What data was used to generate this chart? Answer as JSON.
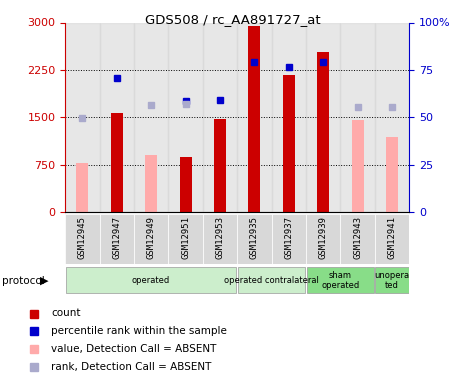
{
  "title": "GDS508 / rc_AA891727_at",
  "samples": [
    "GSM12945",
    "GSM12947",
    "GSM12949",
    "GSM12951",
    "GSM12953",
    "GSM12935",
    "GSM12937",
    "GSM12939",
    "GSM12943",
    "GSM12941"
  ],
  "count_values": [
    null,
    1570,
    null,
    870,
    1470,
    2940,
    2170,
    2540,
    null,
    null
  ],
  "count_absent": [
    780,
    null,
    900,
    null,
    null,
    null,
    null,
    null,
    1450,
    1180
  ],
  "rank_values_left": [
    null,
    2120,
    null,
    1750,
    1780,
    2380,
    2290,
    2370,
    null,
    null
  ],
  "rank_absent_left": [
    1480,
    null,
    1690,
    1710,
    null,
    null,
    null,
    null,
    1660,
    1660
  ],
  "protocols": [
    {
      "label": "operated",
      "start": 0,
      "end": 5,
      "color": "#cceecc"
    },
    {
      "label": "operated contralateral",
      "start": 5,
      "end": 7,
      "color": "#cceecc"
    },
    {
      "label": "sham\noperated",
      "start": 7,
      "end": 9,
      "color": "#88dd88"
    },
    {
      "label": "unopera\nted",
      "start": 9,
      "end": 10,
      "color": "#88dd88"
    }
  ],
  "left_ylim": [
    0,
    3000
  ],
  "right_ylim": [
    0,
    100
  ],
  "left_yticks": [
    0,
    750,
    1500,
    2250,
    3000
  ],
  "right_yticks": [
    0,
    25,
    50,
    75,
    100
  ],
  "right_yticklabels": [
    "0",
    "25",
    "50",
    "75",
    "100%"
  ],
  "count_color": "#cc0000",
  "count_absent_color": "#ffaaaa",
  "rank_color": "#0000cc",
  "rank_absent_color": "#aaaacc"
}
